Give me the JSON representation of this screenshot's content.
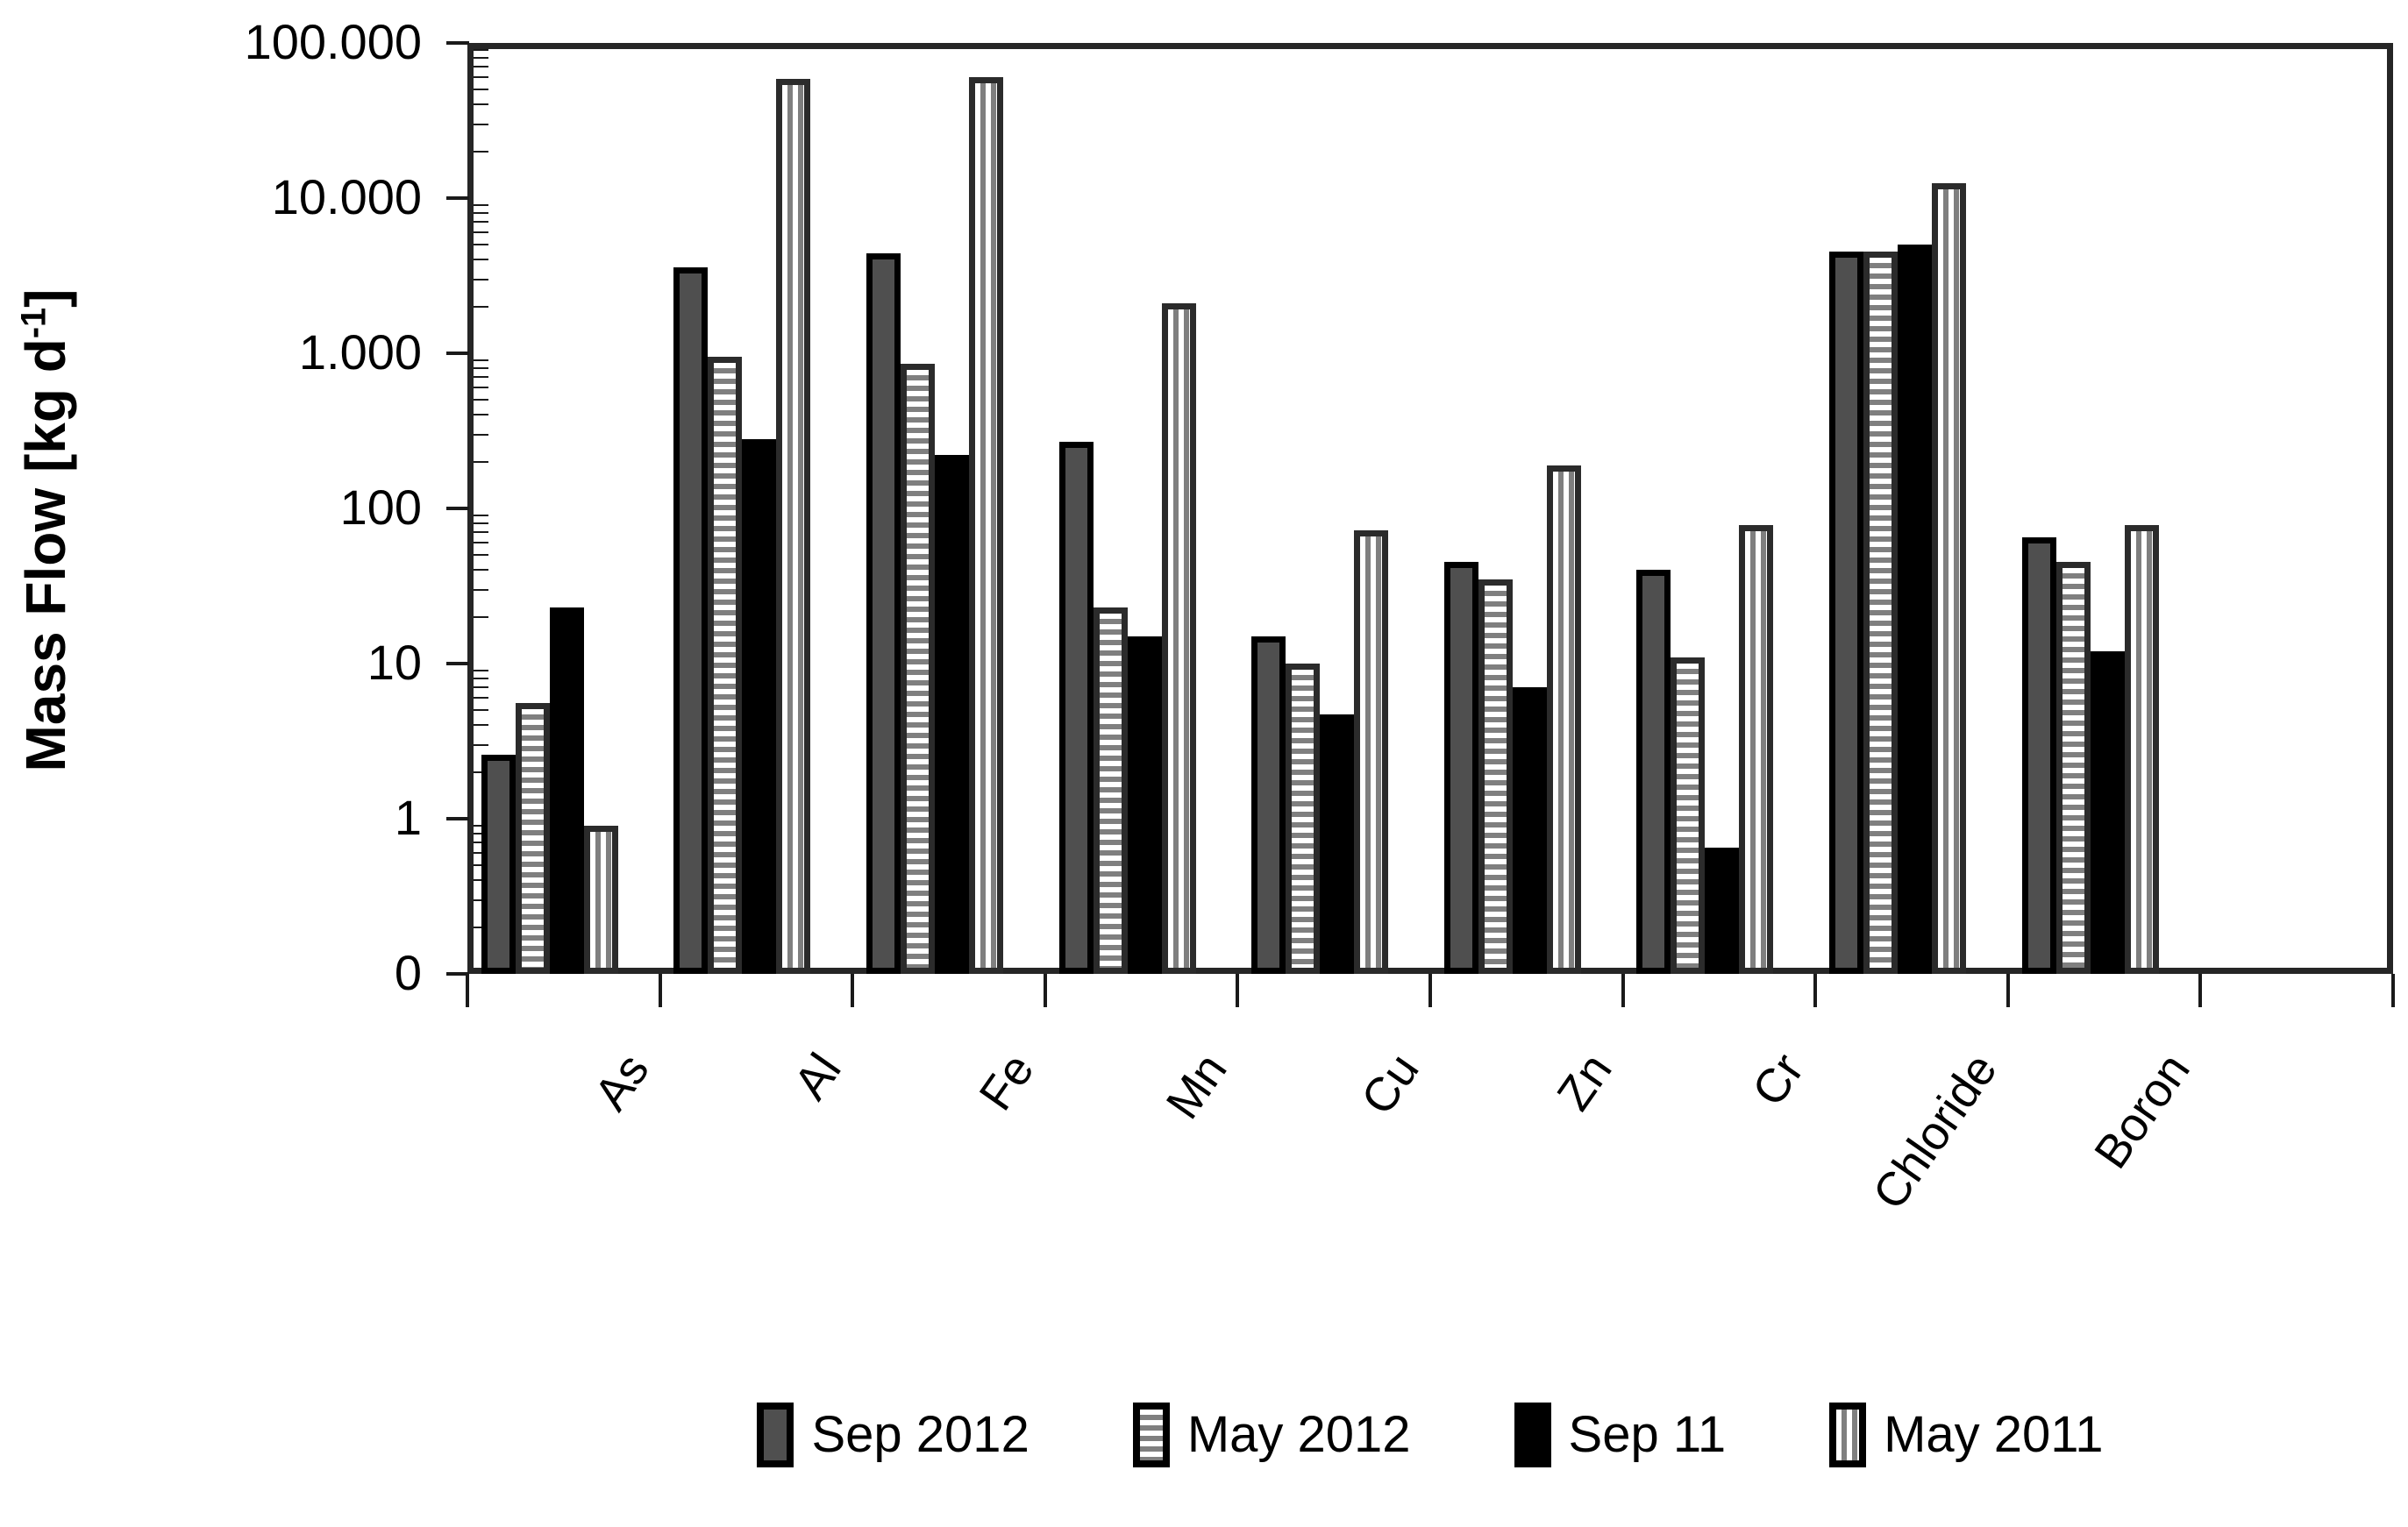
{
  "chart_data": {
    "type": "bar",
    "title": "",
    "ylabel": {
      "prefix": "Mass Flow [kg d",
      "superscript": "-1",
      "suffix": "]"
    },
    "y_scale": "log",
    "ylim": [
      0.1,
      100000
    ],
    "grid": "off",
    "legend_position": "bottom",
    "y_axis_ticks": [
      {
        "label": "0",
        "value": 0.1
      },
      {
        "label": "1",
        "value": 1
      },
      {
        "label": "10",
        "value": 10
      },
      {
        "label": "100",
        "value": 100
      },
      {
        "label": "1.000",
        "value": 1000
      },
      {
        "label": "10.000",
        "value": 10000
      },
      {
        "label": "100.000",
        "value": 100000
      }
    ],
    "categories": [
      "As",
      "Al",
      "Fe",
      "Mn",
      "Cu",
      "Zn",
      "Cr",
      "Chloride",
      "Boron"
    ],
    "series": [
      {
        "name": "Sep 2012",
        "pattern": "solid-gray",
        "values": [
          2.6,
          3600,
          4400,
          270,
          15,
          45,
          40,
          4500,
          65
        ]
      },
      {
        "name": "May 2012",
        "pattern": "horizontal-stripes",
        "values": [
          5.6,
          950,
          850,
          23,
          10,
          35,
          11,
          4500,
          45
        ]
      },
      {
        "name": "Sep 11",
        "pattern": "solid-black",
        "values": [
          23,
          280,
          220,
          15,
          4.7,
          7,
          0.65,
          5000,
          12
        ]
      },
      {
        "name": "May 2011",
        "pattern": "vertical-stripes",
        "values": [
          0.9,
          59000,
          60000,
          2100,
          72,
          190,
          78,
          12500,
          78
        ]
      }
    ],
    "colors": {
      "bar_gray": "#4f4f4f",
      "bar_black": "#000000",
      "stripe_gray": "#7f7f7f",
      "stripe_background": "#ffffff",
      "axis": "#1a1a1a",
      "background": "#ffffff"
    }
  }
}
